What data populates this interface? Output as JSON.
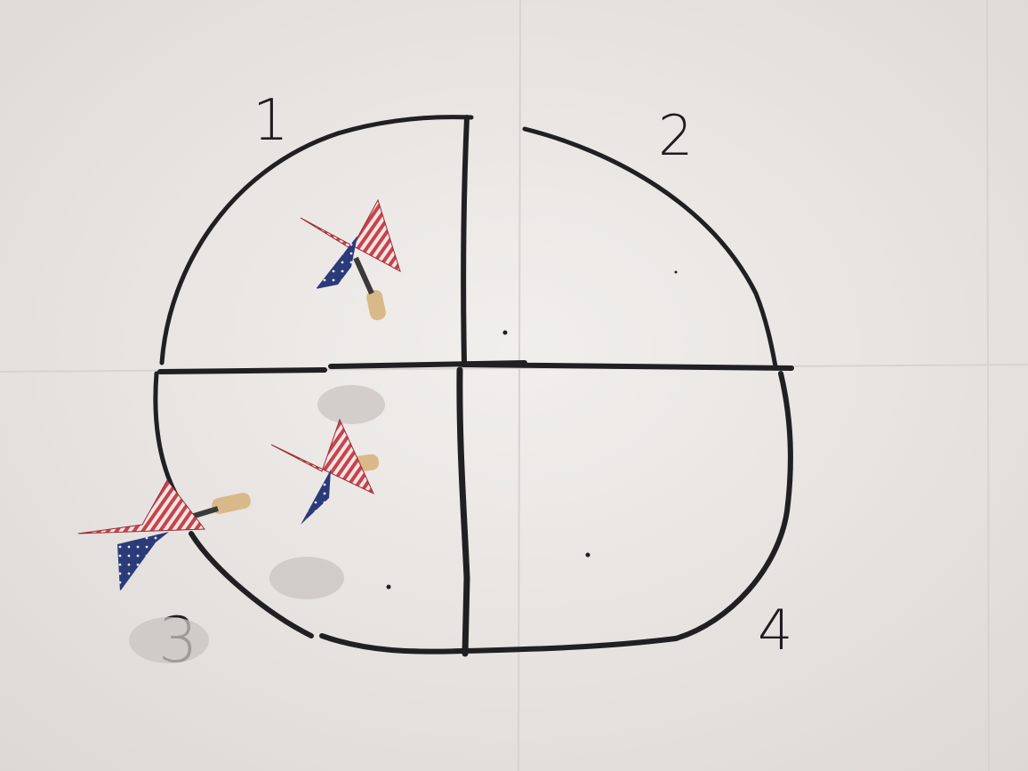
{
  "image": {
    "subject": "dartboard-drawing",
    "quadrant_labels": [
      "1",
      "2",
      "3",
      "4"
    ],
    "dart_count": 3,
    "colors": {
      "paper": "#e9e6e4",
      "ink": "#202022",
      "flight_red": "#c9424a",
      "flight_blue": "#2b3a78",
      "barrel": "#d9b98a"
    }
  }
}
